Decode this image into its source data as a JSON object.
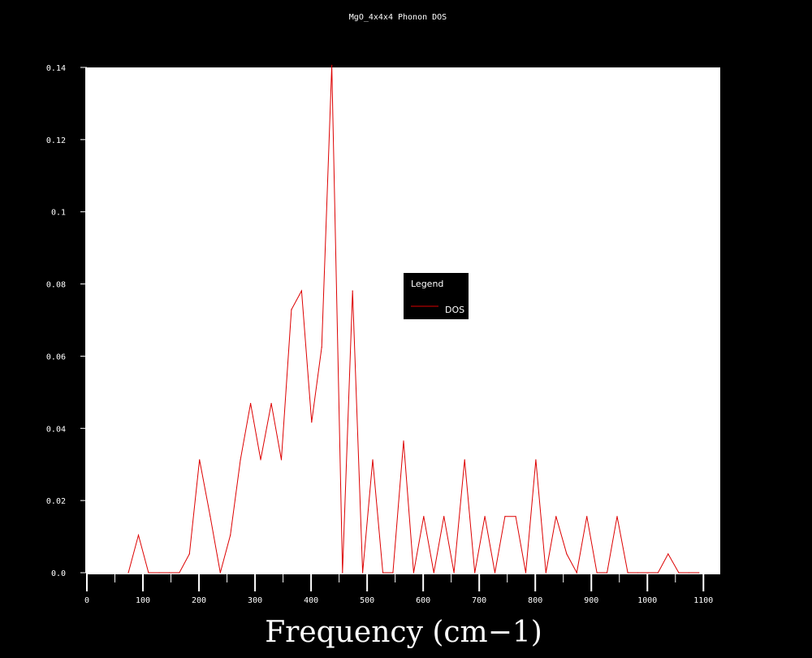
{
  "chart_data": {
    "type": "line",
    "title": "MgO_4x4x4 Phonon DOS",
    "xlabel": "Frequency (cm−1)",
    "ylabel": "",
    "xlim": [
      0,
      1130
    ],
    "ylim": [
      0,
      0.14
    ],
    "xticks": [
      "0",
      "100",
      "200",
      "300",
      "400",
      "500",
      "600",
      "700",
      "800",
      "900",
      "1000",
      "1100"
    ],
    "yticks": [
      "0.0",
      "0.02",
      "0.04",
      "0.06",
      "0.08",
      "0.1",
      "0.12",
      "0.14"
    ],
    "grid": false,
    "legend": {
      "title": "Legend",
      "placement": "center-right"
    },
    "series": [
      {
        "name": "DOS",
        "color": "#dd0000",
        "x": [
          74,
          92,
          110,
          129,
          147,
          165,
          183,
          201,
          220,
          238,
          256,
          274,
          292,
          310,
          329,
          347,
          365,
          383,
          401,
          419,
          437,
          456,
          474,
          492,
          510,
          528,
          546,
          565,
          583,
          601,
          619,
          637,
          655,
          674,
          692,
          710,
          728,
          746,
          765,
          783,
          801,
          819,
          837,
          856,
          874,
          892,
          910,
          928,
          946,
          965,
          983,
          1001,
          1019,
          1037,
          1056,
          1074,
          1092
        ],
        "values": [
          0,
          0.0104,
          0,
          0,
          0,
          0,
          0.0052,
          0.0313,
          0.0156,
          0,
          0.0104,
          0.0313,
          0.0469,
          0.0313,
          0.0469,
          0.0313,
          0.0729,
          0.0781,
          0.0417,
          0.0625,
          0.1406,
          0,
          0.0781,
          0,
          0.0313,
          0,
          0,
          0.0365,
          0,
          0.0156,
          0,
          0.0156,
          0,
          0.0313,
          0,
          0.0156,
          0,
          0.0156,
          0.0156,
          0,
          0.0313,
          0,
          0.0156,
          0.0052,
          0,
          0.0156,
          0,
          0,
          0.0156,
          0,
          0,
          0,
          0,
          0.0052,
          0,
          0,
          0
        ]
      }
    ]
  }
}
